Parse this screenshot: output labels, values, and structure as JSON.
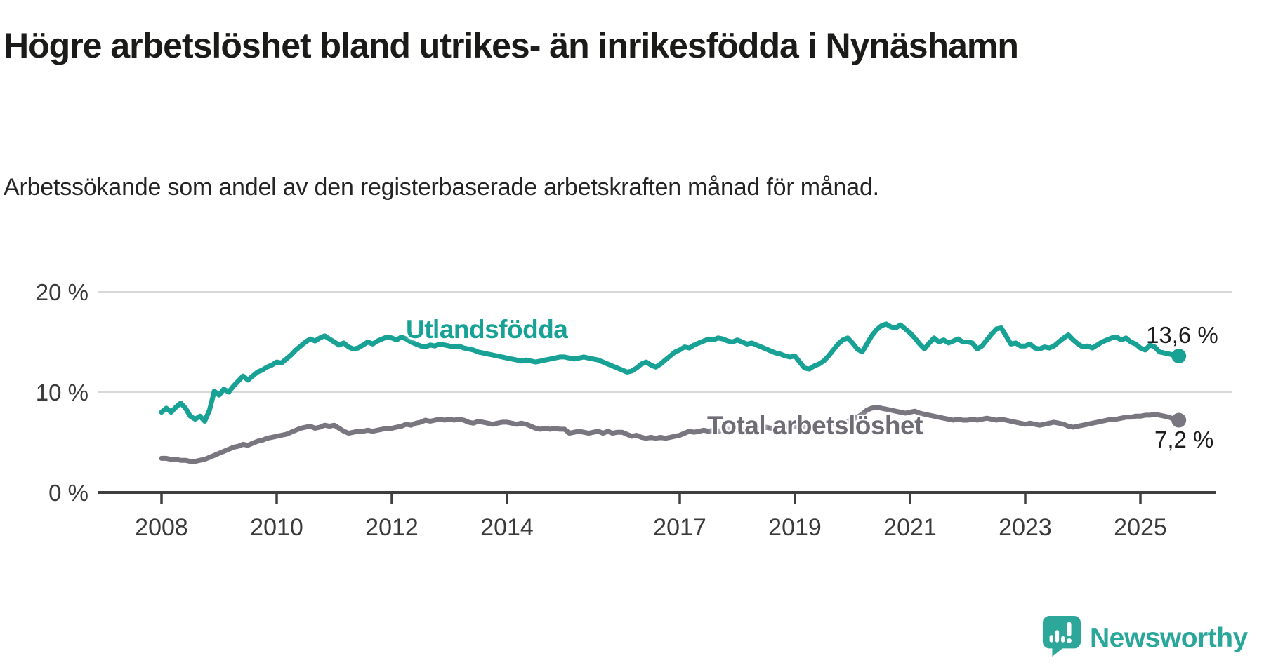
{
  "title": "Högre arbetslöshet bland utrikes- än inrikesfödda i Nynäshamn",
  "subtitle": "Arbetssökande som andel av den registerbaserade arbetskraften månad för månad.",
  "branding": {
    "logo_text": "Newsworthy",
    "logo_color": "#2aa79b"
  },
  "colors": {
    "background": "#ffffff",
    "title_text": "#1b1b19",
    "subtitle_text": "#242424",
    "axis_text": "#3a3a3a",
    "gridline": "#d8d8d8",
    "axis_line": "#3f3f3f",
    "series_foreign_born": "#17a295",
    "series_total": "#7a7680",
    "series_total_label": "#6f6c76"
  },
  "chart_data": {
    "type": "line",
    "title": "Högre arbetslöshet bland utrikes- än inrikesfödda i Nynäshamn",
    "subtitle": "Arbetssökande som andel av den registerbaserade arbetskraften månad för månad.",
    "unit": "percent",
    "frequency": "monthly",
    "x_start": "2008-01",
    "x_end": "2025-09",
    "x_ticks": [
      2008,
      2010,
      2012,
      2014,
      2017,
      2019,
      2021,
      2023,
      2025
    ],
    "y_ticks": [
      {
        "value": 20,
        "label": "20 %"
      },
      {
        "value": 10,
        "label": "10 %"
      },
      {
        "value": 0,
        "label": "0 %"
      }
    ],
    "ylim": [
      0,
      21.5
    ],
    "grid": "horizontal",
    "legend_position": "inline-labels",
    "series": [
      {
        "name": "Utlandsfödda",
        "color": "#17a295",
        "end_label": "13,6 %",
        "end_value": 13.6,
        "values": [
          8.0,
          8.4,
          8.0,
          8.5,
          8.9,
          8.4,
          7.6,
          7.3,
          7.6,
          7.1,
          8.2,
          10.1,
          9.7,
          10.3,
          10.0,
          10.6,
          11.1,
          11.6,
          11.2,
          11.6,
          12.0,
          12.2,
          12.5,
          12.7,
          13.0,
          12.9,
          13.3,
          13.7,
          14.2,
          14.6,
          15.0,
          15.3,
          15.1,
          15.4,
          15.6,
          15.3,
          15.0,
          14.7,
          14.9,
          14.5,
          14.3,
          14.4,
          14.7,
          15.0,
          14.8,
          15.1,
          15.3,
          15.5,
          15.4,
          15.2,
          15.5,
          15.3,
          15.0,
          14.8,
          14.6,
          14.5,
          14.7,
          14.6,
          14.8,
          14.7,
          14.6,
          14.5,
          14.6,
          14.4,
          14.3,
          14.2,
          14.0,
          13.9,
          13.8,
          13.7,
          13.6,
          13.5,
          13.4,
          13.3,
          13.2,
          13.1,
          13.2,
          13.1,
          13.0,
          13.1,
          13.2,
          13.3,
          13.4,
          13.5,
          13.5,
          13.4,
          13.3,
          13.4,
          13.5,
          13.4,
          13.3,
          13.2,
          13.0,
          12.8,
          12.6,
          12.4,
          12.2,
          12.0,
          12.1,
          12.4,
          12.8,
          13.0,
          12.7,
          12.5,
          12.8,
          13.2,
          13.6,
          14.0,
          14.2,
          14.5,
          14.4,
          14.7,
          14.9,
          15.1,
          15.3,
          15.2,
          15.4,
          15.3,
          15.1,
          15.0,
          15.2,
          15.0,
          14.8,
          14.9,
          14.7,
          14.5,
          14.3,
          14.1,
          13.9,
          13.8,
          13.6,
          13.5,
          13.6,
          13.0,
          12.4,
          12.3,
          12.6,
          12.8,
          13.1,
          13.6,
          14.2,
          14.8,
          15.2,
          15.4,
          14.9,
          14.3,
          14.0,
          14.8,
          15.6,
          16.2,
          16.6,
          16.8,
          16.5,
          16.4,
          16.7,
          16.3,
          15.9,
          15.4,
          14.8,
          14.3,
          14.9,
          15.4,
          15.0,
          15.2,
          14.9,
          15.1,
          15.3,
          15.0,
          15.0,
          14.9,
          14.3,
          14.6,
          15.2,
          15.8,
          16.3,
          16.4,
          15.6,
          14.8,
          14.9,
          14.6,
          14.6,
          14.8,
          14.4,
          14.3,
          14.5,
          14.4,
          14.6,
          15.0,
          15.4,
          15.7,
          15.2,
          14.8,
          14.5,
          14.6,
          14.4,
          14.7,
          15.0,
          15.2,
          15.4,
          15.5,
          15.2,
          15.4,
          15.0,
          14.8,
          14.4,
          14.2,
          14.7,
          14.5,
          14.0,
          13.9,
          13.8,
          13.7,
          13.6
        ]
      },
      {
        "name": "Total arbetslöshet",
        "color": "#7a7680",
        "end_label": "7,2 %",
        "end_value": 7.2,
        "values": [
          3.4,
          3.4,
          3.3,
          3.3,
          3.2,
          3.2,
          3.1,
          3.1,
          3.2,
          3.3,
          3.5,
          3.7,
          3.9,
          4.1,
          4.3,
          4.5,
          4.6,
          4.8,
          4.7,
          4.9,
          5.1,
          5.2,
          5.4,
          5.5,
          5.6,
          5.7,
          5.8,
          6.0,
          6.2,
          6.4,
          6.5,
          6.6,
          6.4,
          6.5,
          6.7,
          6.6,
          6.7,
          6.4,
          6.1,
          5.9,
          6.0,
          6.1,
          6.1,
          6.2,
          6.1,
          6.2,
          6.3,
          6.4,
          6.4,
          6.5,
          6.6,
          6.8,
          6.7,
          6.9,
          7.0,
          7.2,
          7.1,
          7.2,
          7.3,
          7.2,
          7.3,
          7.2,
          7.3,
          7.2,
          7.0,
          6.9,
          7.1,
          7.0,
          6.9,
          6.8,
          6.9,
          7.0,
          7.0,
          6.9,
          6.8,
          6.9,
          6.8,
          6.6,
          6.4,
          6.3,
          6.4,
          6.3,
          6.4,
          6.3,
          6.3,
          5.9,
          6.0,
          6.1,
          6.0,
          5.9,
          6.0,
          6.1,
          5.9,
          6.1,
          5.9,
          6.0,
          6.0,
          5.8,
          5.6,
          5.7,
          5.5,
          5.4,
          5.5,
          5.4,
          5.5,
          5.4,
          5.5,
          5.6,
          5.7,
          5.9,
          6.1,
          6.0,
          6.1,
          6.2,
          6.1,
          6.2,
          6.1,
          6.2,
          6.3,
          6.2,
          6.3,
          6.2,
          6.3,
          6.4,
          6.3,
          6.4,
          6.5,
          6.4,
          6.5,
          6.4,
          6.5,
          6.6,
          6.6,
          6.5,
          6.6,
          6.7,
          6.6,
          6.7,
          6.8,
          6.7,
          6.8,
          6.9,
          7.0,
          7.1,
          7.3,
          7.5,
          7.8,
          8.2,
          8.4,
          8.5,
          8.4,
          8.3,
          8.2,
          8.1,
          8.0,
          7.9,
          8.0,
          8.1,
          7.9,
          7.8,
          7.7,
          7.6,
          7.5,
          7.4,
          7.3,
          7.2,
          7.3,
          7.2,
          7.2,
          7.3,
          7.2,
          7.3,
          7.4,
          7.3,
          7.2,
          7.3,
          7.2,
          7.1,
          7.0,
          6.9,
          6.8,
          6.9,
          6.8,
          6.7,
          6.8,
          6.9,
          7.0,
          6.9,
          6.8,
          6.6,
          6.5,
          6.6,
          6.7,
          6.8,
          6.9,
          7.0,
          7.1,
          7.2,
          7.3,
          7.3,
          7.4,
          7.5,
          7.5,
          7.6,
          7.6,
          7.7,
          7.7,
          7.8,
          7.7,
          7.6,
          7.5,
          7.3,
          7.2
        ]
      }
    ]
  }
}
